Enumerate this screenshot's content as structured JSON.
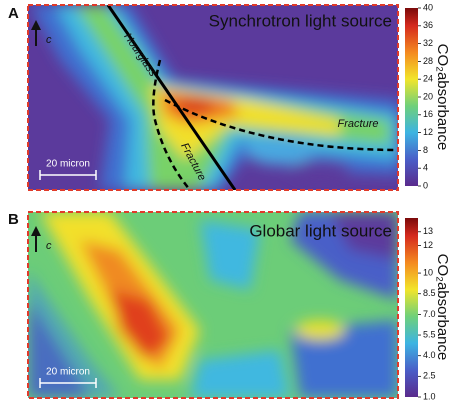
{
  "chart_data": [
    {
      "type": "heatmap",
      "panel_label": "A",
      "title": "Synchrotron light source",
      "axis_label": "c",
      "scale_bar": "20 micron",
      "annotations": [
        "Hourglass",
        "Fracture",
        "Fracture"
      ],
      "colorbar_label": "CO₂absorbance",
      "clim": [
        0,
        40
      ],
      "cticks": [
        0,
        4,
        8,
        12,
        16,
        20,
        24,
        28,
        32,
        36,
        40
      ]
    },
    {
      "type": "heatmap",
      "panel_label": "B",
      "title": "Globar light source",
      "axis_label": "c",
      "scale_bar": "20 micron",
      "colorbar_label": "CO₂absorbance",
      "clim": [
        1,
        14
      ],
      "cticks": [
        {
          "value": 1,
          "label": "1.0"
        },
        {
          "value": 2.5,
          "label": "2.5"
        },
        {
          "value": 4,
          "label": "4.0"
        },
        {
          "value": 5.5,
          "label": "5.5"
        },
        {
          "value": 7,
          "label": "7.0"
        },
        {
          "value": 8.5,
          "label": "8.5"
        },
        10,
        12,
        13
      ]
    }
  ]
}
